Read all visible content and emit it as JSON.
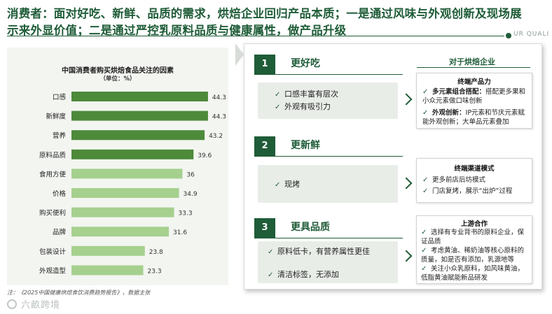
{
  "header": {
    "headline": "消费者：面对好吃、新鲜、品质的需求，烘焙企业回归产品本质；一是通过风味与外观创新及现场展示来外显价值；二是通过严控乳原料品质与健康属性，做产品升级",
    "brand_text": "UR QUALI"
  },
  "chart_data": {
    "type": "bar",
    "orientation": "horizontal",
    "title": "中国消费者购买烘焙食品关注的因素",
    "unit": "（单位：%）",
    "categories": [
      "口感",
      "新鲜度",
      "营养",
      "原料品质",
      "食用方便",
      "价格",
      "购买便利",
      "品牌",
      "包装设计",
      "外观造型"
    ],
    "values": [
      44.3,
      44.3,
      43.2,
      39.6,
      36,
      34.9,
      33.3,
      31.6,
      23.8,
      23.3
    ],
    "value_labels": [
      "44.3",
      "44.3",
      "43.2",
      "39.6",
      "36",
      "34.9",
      "33.3",
      "31.6",
      "23.8",
      "23.3"
    ],
    "highlight_count": 4,
    "xlim": [
      0,
      50
    ],
    "grid": false,
    "legend": "none",
    "colors": {
      "highlight": "#4d8a3a",
      "normal": "#a6d08e"
    }
  },
  "footer": {
    "source": "注：《2025中国健康烘焙食饮消费趋势报告》，数据主张",
    "watermark": "六畝跨境"
  },
  "right": {
    "column_head": "对于烘焙企业",
    "sections": [
      {
        "num": "1",
        "title": "更好吃",
        "consumer_items": [
          "口感丰富有层次",
          "外观有吸引力"
        ],
        "card_head": "终端产品力",
        "card_items": [
          {
            "bold": "多元素组合搭配：",
            "text": "搭配更多果和小众元素做口味创新"
          },
          {
            "bold": "外观创新：",
            "text": "IP元素和节庆元素赋能外观创新；大单品元素叠加"
          }
        ]
      },
      {
        "num": "2",
        "title": "更新鲜",
        "consumer_items": [
          "现烤"
        ],
        "card_head": "终端渠道模式",
        "card_items": [
          {
            "bold": "",
            "text": "更多前店后坊模式"
          },
          {
            "bold": "",
            "text": "门店复烤，展示“出炉”过程"
          }
        ]
      },
      {
        "num": "3",
        "title": "更具品质",
        "consumer_items": [
          "原料低卡，有营养属性更佳",
          "清洁标签，无添加"
        ],
        "card_head": "上游合作",
        "card_items": [
          {
            "bold": "",
            "text": "选择有专业背书的原料企业，保证品质"
          },
          {
            "bold": "",
            "text": "考虑黄油、稀奶油等核心原料的质量，如是否有添加，乳源地等"
          },
          {
            "bold": "",
            "text": "关注小众乳原料，如风味黄油，低脂黄油赋能新品研发"
          }
        ]
      }
    ],
    "check_glyph": "✓",
    "bullet_glyph": "✓"
  }
}
